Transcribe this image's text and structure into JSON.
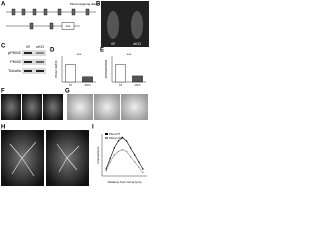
{
  "panel_labels": [
    "A",
    "B",
    "C",
    "D",
    "E",
    "F",
    "G",
    "H",
    "I"
  ],
  "gene_label": "Pkm2 targeting allele",
  "cre_label": "Cre",
  "mouse_labels": [
    "f/f",
    "cKO"
  ],
  "blot_header": [
    "f/f",
    "cKO"
  ],
  "blot_labels": [
    "pPKM2",
    "PKM2",
    "Tubulin"
  ],
  "chart_data": [
    {
      "type": "bar",
      "ylabel": "Pkm2 mRNA",
      "categories": [
        "f/f",
        "cKO"
      ],
      "values": [
        1.0,
        0.3
      ],
      "colors": [
        "#ffffff",
        "#555555"
      ],
      "ylim": [
        0,
        1.5
      ],
      "significance": "***"
    },
    {
      "type": "bar",
      "ylabel": "pPKM2/PKM2",
      "categories": [
        "f/f",
        "cKO"
      ],
      "values": [
        1.0,
        0.35
      ],
      "colors": [
        "#ffffff",
        "#555555"
      ],
      "ylim": [
        0,
        1.5
      ],
      "significance": "***"
    },
    {
      "type": "line",
      "xlabel": "Distance from soma (µm)",
      "ylabel": "Intersections",
      "x": [
        10,
        20,
        30,
        40,
        50,
        60,
        70,
        80,
        90,
        100
      ],
      "xlim": [
        0,
        110
      ],
      "ylim": [
        0,
        12
      ],
      "series": [
        {
          "name": "Pkm2 f/f",
          "color": "#000000",
          "values": [
            2,
            5,
            8,
            10,
            11,
            10,
            8,
            6,
            4,
            2
          ]
        },
        {
          "name": "Pkm2 cKO",
          "color": "#888888",
          "values": [
            1.5,
            4,
            6,
            7,
            7.5,
            7,
            5.5,
            4,
            2.5,
            1
          ]
        }
      ]
    }
  ]
}
